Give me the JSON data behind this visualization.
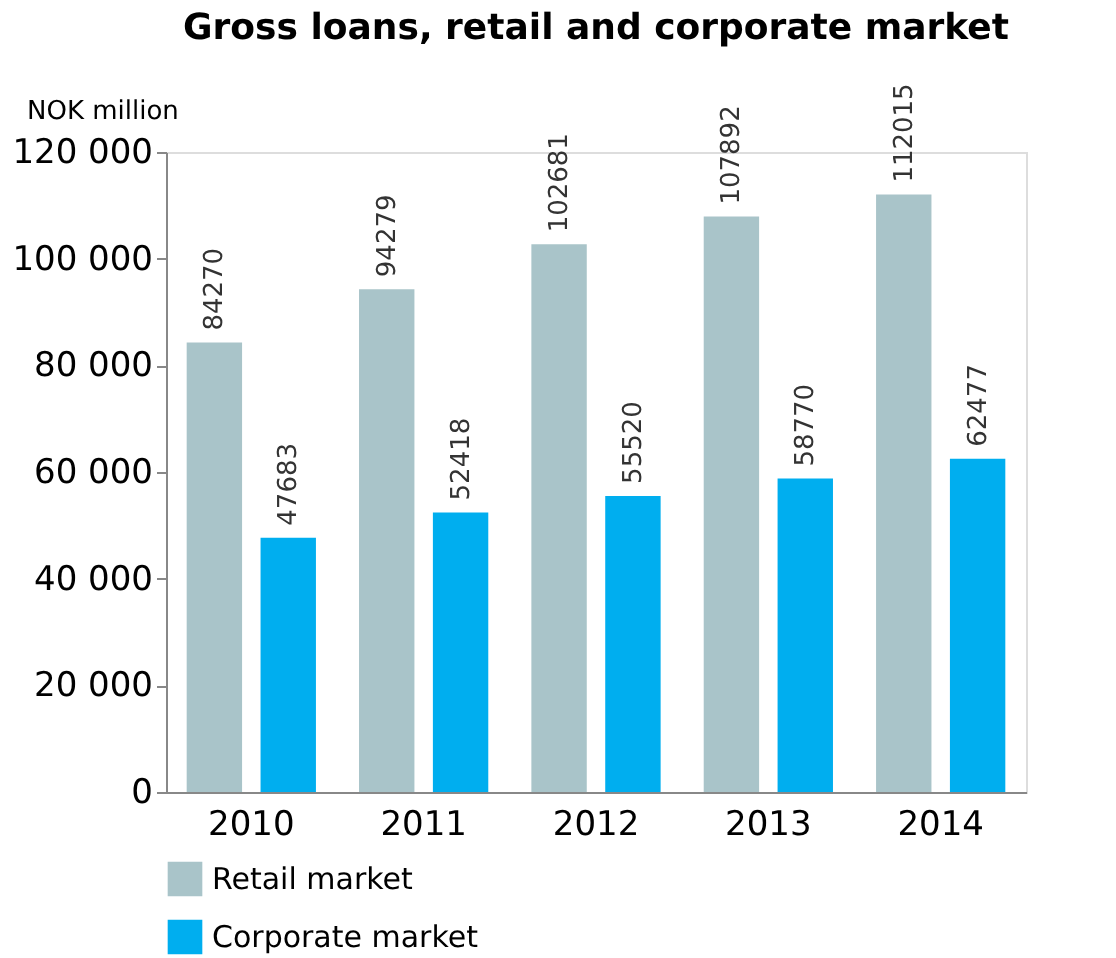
{
  "chart_data": {
    "type": "bar",
    "title": "Gross loans, retail and corporate market",
    "ylabel": "NOK million",
    "categories": [
      "2010",
      "2011",
      "2012",
      "2013",
      "2014"
    ],
    "series": [
      {
        "name": "Retail market",
        "color": "#a9c4c9",
        "values": [
          84270,
          94279,
          102681,
          107892,
          112015
        ]
      },
      {
        "name": "Corporate market",
        "color": "#00aeef",
        "values": [
          47683,
          52418,
          55520,
          58770,
          62477
        ]
      }
    ],
    "ylim": [
      0,
      120000
    ],
    "yticks": [
      {
        "value": 0,
        "label": "0"
      },
      {
        "value": 20000,
        "label": "20 000"
      },
      {
        "value": 40000,
        "label": "40 000"
      },
      {
        "value": 60000,
        "label": "60 000"
      },
      {
        "value": 80000,
        "label": "80 000"
      },
      {
        "value": 100000,
        "label": "100 000"
      },
      {
        "value": 120000,
        "label": "120 000"
      }
    ],
    "data_labels": true,
    "grid": false,
    "legend": "bottom left"
  }
}
